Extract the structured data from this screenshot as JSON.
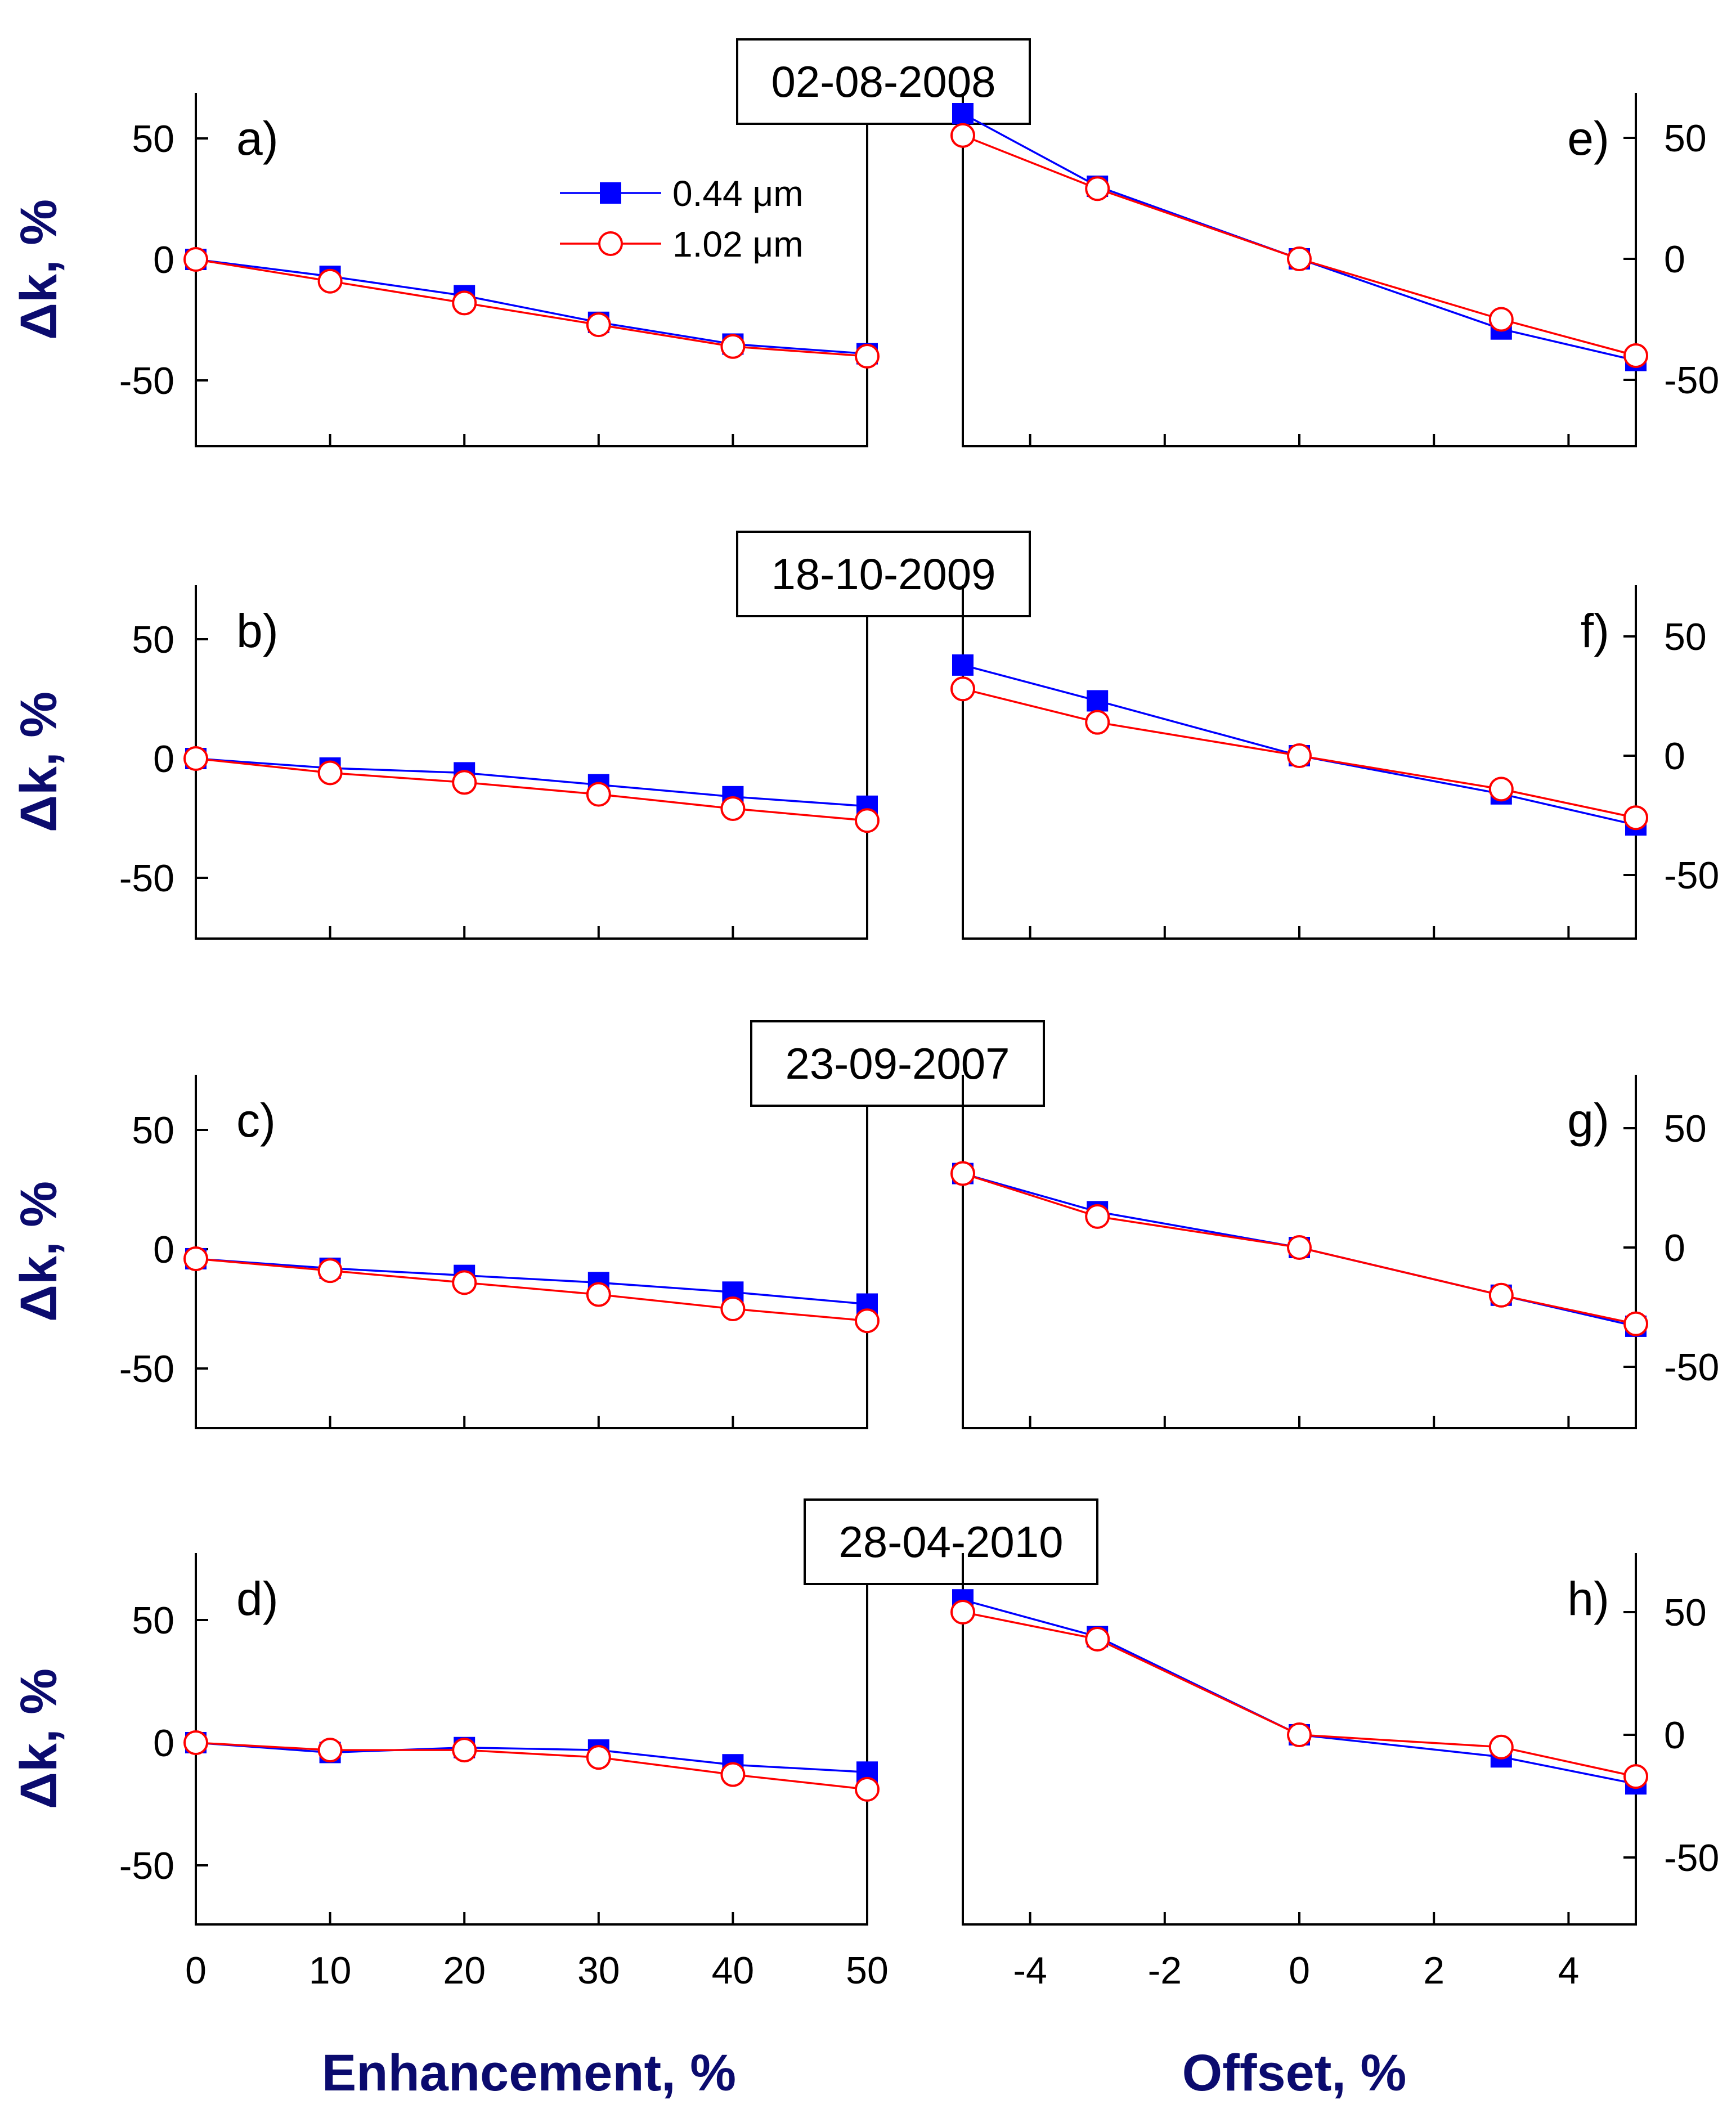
{
  "figure": {
    "xlabel_left": "Enhancement, %",
    "xlabel_right": "Offset, %",
    "ylabel": "Δk, %",
    "legend": [
      {
        "label": "0.44 μm",
        "color": "#0000ff",
        "marker": "filled-square"
      },
      {
        "label": "1.02 μm",
        "color": "#ff0000",
        "marker": "open-circle"
      }
    ]
  },
  "chart_data": [
    {
      "type": "line",
      "panel": "a)",
      "date": "02-08-2008",
      "xlabel": "Enhancement, %",
      "ylabel": "Δk, %",
      "x": [
        0,
        10,
        20,
        30,
        40,
        50
      ],
      "xlim": [
        0,
        50
      ],
      "ylim": [
        -75,
        75
      ],
      "series": [
        {
          "name": "0.44 μm",
          "values": [
            0,
            -7,
            -15,
            -26,
            -35,
            -39
          ]
        },
        {
          "name": "1.02 μm",
          "values": [
            0,
            -9,
            -18,
            -27,
            -36,
            -40
          ]
        }
      ]
    },
    {
      "type": "line",
      "panel": "b)",
      "date": "18-10-2009",
      "xlabel": "Enhancement, %",
      "ylabel": "Δk, %",
      "x": [
        0,
        10,
        20,
        30,
        40,
        50
      ],
      "xlim": [
        0,
        50
      ],
      "ylim": [
        -75,
        75
      ],
      "series": [
        {
          "name": "0.44 μm",
          "values": [
            0,
            -4,
            -6,
            -11,
            -16,
            -20
          ]
        },
        {
          "name": "1.02 μm",
          "values": [
            0,
            -6,
            -10,
            -15,
            -21,
            -26
          ]
        }
      ]
    },
    {
      "type": "line",
      "panel": "c)",
      "date": "23-09-2007",
      "xlabel": "Enhancement, %",
      "ylabel": "Δk, %",
      "x": [
        0,
        10,
        20,
        30,
        40,
        50
      ],
      "xlim": [
        0,
        50
      ],
      "ylim": [
        -75,
        75
      ],
      "series": [
        {
          "name": "0.44 μm",
          "values": [
            -4,
            -8,
            -11,
            -14,
            -18,
            -23
          ]
        },
        {
          "name": "1.02 μm",
          "values": [
            -4,
            -9,
            -14,
            -19,
            -25,
            -30
          ]
        }
      ]
    },
    {
      "type": "line",
      "panel": "d)",
      "date": "28-04-2010",
      "xlabel": "Enhancement, %",
      "ylabel": "Δk, %",
      "x": [
        0,
        10,
        20,
        30,
        40,
        50
      ],
      "xlim": [
        0,
        50
      ],
      "ylim": [
        -75,
        75
      ],
      "series": [
        {
          "name": "0.44 μm",
          "values": [
            0,
            -4,
            -2,
            -3,
            -9,
            -12
          ]
        },
        {
          "name": "1.02 μm",
          "values": [
            0,
            -3,
            -3,
            -6,
            -13,
            -19
          ]
        }
      ]
    },
    {
      "type": "line",
      "panel": "e)",
      "date": "02-08-2008",
      "xlabel": "Offset, %",
      "ylabel": "Δk, %",
      "x": [
        -5,
        -3,
        0,
        3,
        5
      ],
      "xlim": [
        -5,
        5
      ],
      "ylim": [
        -75,
        75
      ],
      "series": [
        {
          "name": "0.44 μm",
          "values": [
            60,
            30,
            0,
            -29,
            -42
          ]
        },
        {
          "name": "1.02 μm",
          "values": [
            51,
            29,
            0,
            -25,
            -40
          ]
        }
      ]
    },
    {
      "type": "line",
      "panel": "f)",
      "date": "18-10-2009",
      "xlabel": "Offset, %",
      "ylabel": "Δk, %",
      "x": [
        -5,
        -3,
        0,
        3,
        5
      ],
      "xlim": [
        -5,
        5
      ],
      "ylim": [
        -75,
        75
      ],
      "series": [
        {
          "name": "0.44 μm",
          "values": [
            38,
            23,
            0,
            -16,
            -29
          ]
        },
        {
          "name": "1.02 μm",
          "values": [
            28,
            14,
            0,
            -14,
            -26
          ]
        }
      ]
    },
    {
      "type": "line",
      "panel": "g)",
      "date": "23-09-2007",
      "xlabel": "Offset, %",
      "ylabel": "Δk, %",
      "x": [
        -5,
        -3,
        0,
        3,
        5
      ],
      "xlim": [
        -5,
        5
      ],
      "ylim": [
        -75,
        75
      ],
      "series": [
        {
          "name": "0.44 μm",
          "values": [
            31,
            15,
            0,
            -20,
            -33
          ]
        },
        {
          "name": "1.02 μm",
          "values": [
            31,
            13,
            0,
            -20,
            -32
          ]
        }
      ]
    },
    {
      "type": "line",
      "panel": "h)",
      "date": "28-04-2010",
      "xlabel": "Offset, %",
      "ylabel": "Δk, %",
      "x": [
        -5,
        -3,
        0,
        3,
        5
      ],
      "xlim": [
        -5,
        5
      ],
      "ylim": [
        -75,
        75
      ],
      "series": [
        {
          "name": "0.44 μm",
          "values": [
            55,
            40,
            0,
            -9,
            -20
          ]
        },
        {
          "name": "1.02 μm",
          "values": [
            50,
            39,
            0,
            -5,
            -17
          ]
        }
      ]
    }
  ]
}
